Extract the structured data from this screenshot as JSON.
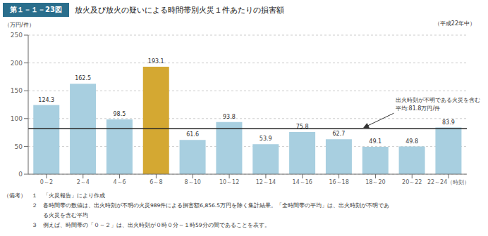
{
  "chart_data": {
    "type": "bar",
    "title_prefix": "第１－１－23図",
    "title": "放火及び放火の疑いによる時間帯別火災１件あたりの損害額",
    "subtitle": "（平成22年中）",
    "ylabel": "（万円/件）",
    "categories": [
      "0～2",
      "2～4",
      "4～6",
      "6～8",
      "8～10",
      "10～12",
      "12～14",
      "14～16",
      "16～18",
      "18～20",
      "20～22",
      "22～24（時刻）"
    ],
    "values": [
      124.3,
      162.5,
      98.5,
      193.1,
      61.6,
      93.8,
      53.9,
      75.8,
      62.7,
      49.1,
      49.8,
      83.9
    ],
    "colors": [
      "#a8cfe0",
      "#a8cfe0",
      "#a8cfe0",
      "#d4a832",
      "#a8cfe0",
      "#a8cfe0",
      "#a8cfe0",
      "#a8cfe0",
      "#a8cfe0",
      "#a8cfe0",
      "#a8cfe0",
      "#a8cfe0"
    ],
    "data_labels": true,
    "avg_line": 81.8,
    "annotations": [
      "出火時刻が不明である火災を含む",
      "平均:81.8万円/件"
    ],
    "notes": [
      "（備考）　１　「火災報告」により作成",
      "　　　　　２　各時間帯の数値は、出火時刻が不明の火災989件による損害額6,856.5万円を除く集計結果。「全時間帯の平均」は、出火時刻が不明であ",
      "　　　　　　　る火災を含む平均",
      "　　　　　３　例えば、時間帯の「０～２」は、出火時刻が０時０分～１時59分の間であることを表す。"
    ],
    "ylim": [
      0,
      250
    ],
    "yticks": [
      0,
      50,
      100,
      150,
      200,
      250
    ],
    "grid": true
  }
}
